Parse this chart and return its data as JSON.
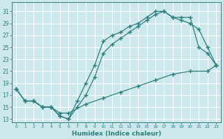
{
  "xlabel": "Humidex (Indice chaleur)",
  "bg_color": "#cce8ec",
  "grid_color": "#ffffff",
  "line_color": "#2e7d7d",
  "xlim": [
    -0.5,
    23.5
  ],
  "ylim": [
    12.5,
    32.5
  ],
  "xticks": [
    0,
    1,
    2,
    3,
    4,
    5,
    6,
    7,
    8,
    9,
    10,
    11,
    12,
    13,
    14,
    15,
    16,
    17,
    18,
    19,
    20,
    21,
    22,
    23
  ],
  "yticks": [
    13,
    15,
    17,
    19,
    21,
    23,
    25,
    27,
    29,
    31
  ],
  "series1_x": [
    0,
    1,
    2,
    3,
    4,
    5,
    6,
    7,
    8,
    9,
    10,
    11,
    12,
    13,
    14,
    15,
    16,
    17,
    18,
    19,
    20,
    21,
    22,
    23
  ],
  "series1_y": [
    18,
    16,
    16,
    15,
    15,
    13.5,
    13,
    16,
    19,
    22,
    26,
    27,
    27.5,
    28.5,
    29,
    30,
    31,
    31,
    30,
    29.5,
    29,
    28,
    25,
    22
  ],
  "series2_x": [
    0,
    1,
    2,
    3,
    4,
    5,
    6,
    7,
    8,
    9,
    10,
    11,
    12,
    13,
    14,
    15,
    16,
    17,
    18,
    19,
    20,
    21,
    22,
    23
  ],
  "series2_y": [
    18,
    16,
    16,
    15,
    15,
    13.5,
    13,
    15,
    17,
    20,
    24,
    25.5,
    26.5,
    27.5,
    28.5,
    29.5,
    30.5,
    31,
    30,
    30,
    30,
    25,
    24,
    22
  ],
  "series3_x": [
    0,
    1,
    2,
    3,
    4,
    5,
    6,
    8,
    10,
    12,
    14,
    16,
    18,
    20,
    22,
    23
  ],
  "series3_y": [
    18,
    16,
    16,
    15,
    15,
    14,
    14,
    15.5,
    16.5,
    17.5,
    18.5,
    19.5,
    20.5,
    21,
    21,
    22
  ]
}
